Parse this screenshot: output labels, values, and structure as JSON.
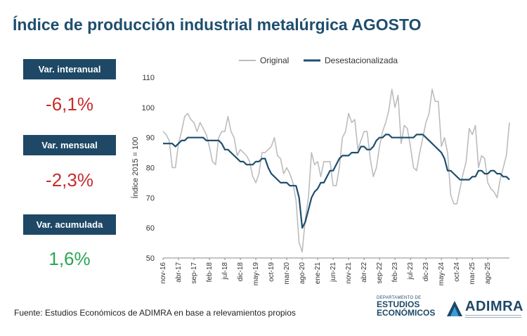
{
  "header": {
    "title": "Índice de producción industrial metalúrgica AGOSTO"
  },
  "stats": [
    {
      "label": "Var. interanual",
      "value": "-6,1%",
      "color": "#c82c2c"
    },
    {
      "label": "Var. mensual",
      "value": "-2,3%",
      "color": "#c82c2c"
    },
    {
      "label": "Var. acumulada",
      "value": "1,6%",
      "color": "#2aa655"
    }
  ],
  "footer": {
    "source": "Fuente: Estudios Económicos de ADIMRA en base a relevamientos propios"
  },
  "logos": {
    "ee_small": "DEPARTAMENTO DE",
    "ee_line1": "ESTUDIOS",
    "ee_line2": "ECONÓMICOS",
    "adimra": "ADIMRA",
    "adimra_colors": [
      "#1e4866",
      "#3a9bd6"
    ]
  },
  "chart_data": {
    "type": "line",
    "title": "",
    "xlabel": "",
    "ylabel": "Índice 2015 = 100",
    "ylim": [
      50,
      110
    ],
    "yticks": [
      50,
      60,
      70,
      80,
      90,
      100,
      110
    ],
    "grid": false,
    "legend_position": "top",
    "x_start": "nov-16",
    "x_tick_labels": [
      "nov-16",
      "abr-17",
      "sep-17",
      "feb-18",
      "jul-18",
      "dic-18",
      "may-19",
      "oct-19",
      "mar-20",
      "ago-20",
      "ene-21",
      "jun-21",
      "nov-21",
      "abr-22",
      "sep-22",
      "feb-23",
      "jul-23",
      "dic-23",
      "may-24",
      "oct-24",
      "mar-25",
      "ago-25"
    ],
    "series": [
      {
        "name": "Original",
        "color": "#bcbcbc",
        "values": [
          92,
          91,
          89,
          80,
          80,
          88,
          92,
          97,
          98,
          96,
          95,
          92,
          95,
          93,
          91,
          87,
          82,
          81,
          90,
          92,
          92,
          97,
          92,
          90,
          84,
          86,
          85,
          84,
          82,
          77,
          75,
          78,
          85,
          85,
          86,
          87,
          90,
          84,
          83,
          78,
          80,
          78,
          75,
          69,
          55,
          52,
          63,
          70,
          85,
          81,
          82,
          77,
          82,
          82,
          82,
          74,
          74,
          80,
          90,
          92,
          98,
          95,
          96,
          86,
          89,
          92,
          92,
          83,
          77,
          80,
          87,
          92,
          95,
          99,
          106,
          100,
          104,
          88,
          94,
          93,
          87,
          80,
          79,
          85,
          90,
          95,
          98,
          106,
          102,
          102,
          87,
          90,
          85,
          71,
          68,
          68,
          73,
          78,
          82,
          93,
          91,
          94,
          80,
          84,
          83,
          75,
          73,
          72,
          70,
          76,
          80,
          84,
          95
        ],
        "scale_note": ""
      },
      {
        "name": "Desestacionalizada",
        "color": "#1e4e6e",
        "values": [
          88,
          88,
          88,
          88,
          87,
          88,
          89,
          89,
          90,
          90,
          90,
          90,
          90,
          90,
          89,
          89,
          89,
          89,
          89,
          88,
          86,
          86,
          85,
          84,
          83,
          82,
          82,
          81,
          81,
          81,
          82,
          82,
          83,
          83,
          80,
          78,
          77,
          76,
          75,
          75,
          75,
          74,
          74,
          74,
          70,
          60,
          62,
          66,
          70,
          72,
          73,
          75,
          75,
          77,
          79,
          79,
          81,
          83,
          84,
          84,
          84,
          85,
          85,
          85,
          87,
          87,
          86,
          86,
          87,
          89,
          90,
          90,
          91,
          91,
          90,
          90,
          90,
          90,
          90,
          90,
          90,
          90,
          91,
          91,
          91,
          90,
          89,
          88,
          87,
          86,
          85,
          83,
          79,
          79,
          78,
          77,
          76,
          76,
          76,
          76,
          77,
          77,
          79,
          79,
          78,
          78,
          79,
          79,
          78,
          78,
          77,
          77,
          76
        ]
      }
    ]
  }
}
